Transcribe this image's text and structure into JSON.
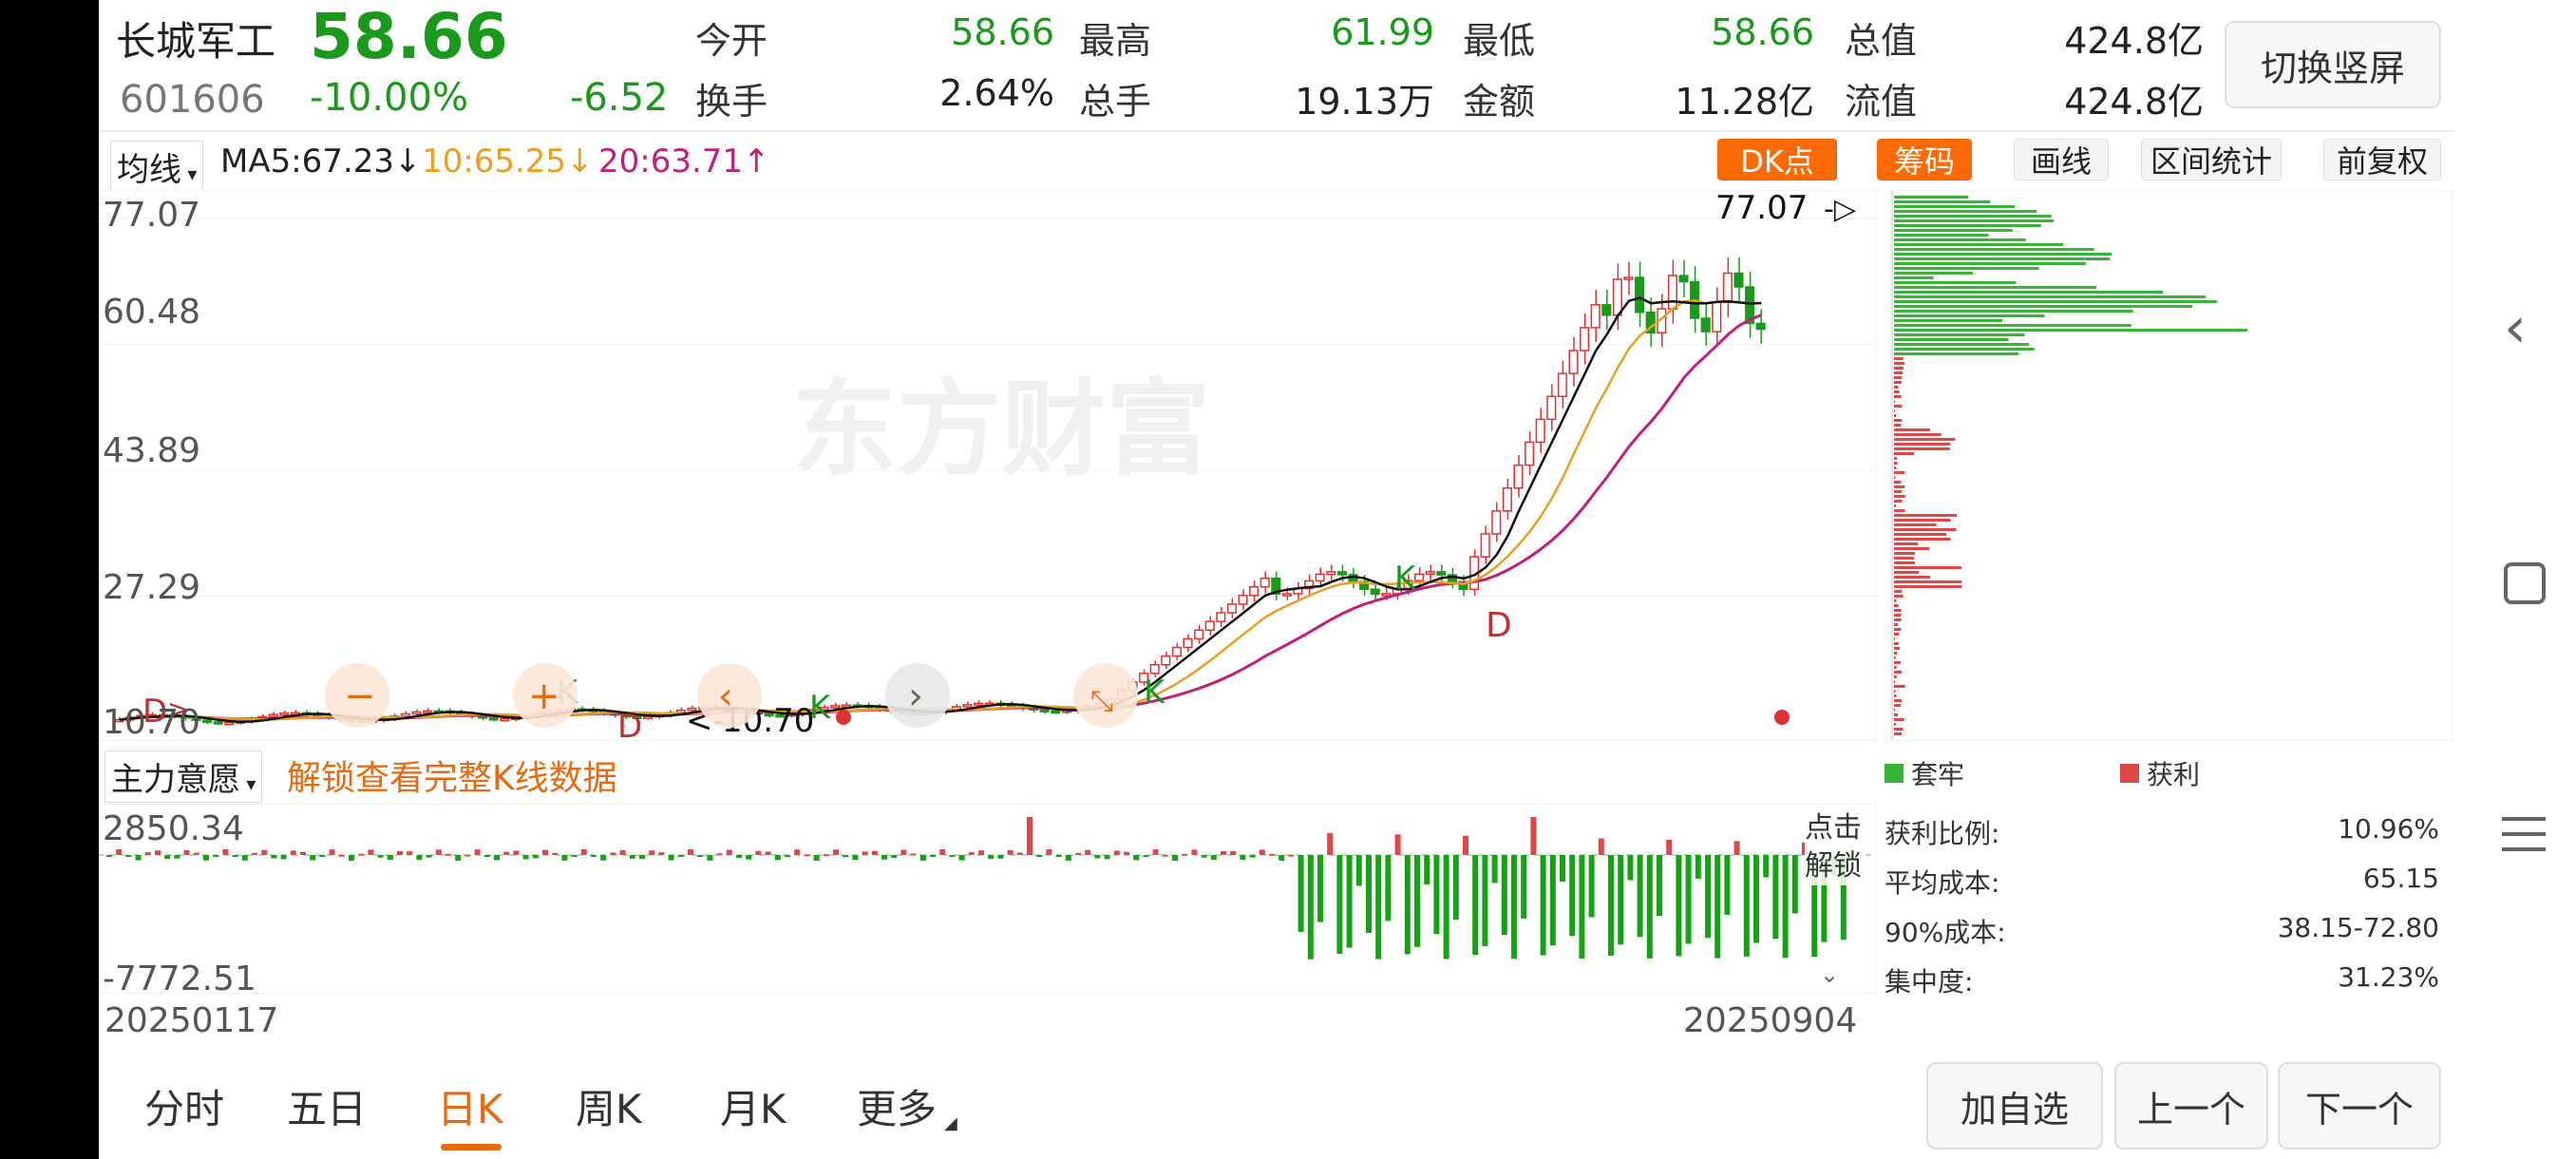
{
  "header": {
    "stock_name": "长城军工",
    "price": "58.66",
    "code": "601606",
    "change_pct": "-10.00%",
    "change_abs": "-6.52",
    "open_label": "今开",
    "open_value": "58.66",
    "high_label": "最高",
    "high_value": "61.99",
    "low_label": "最低",
    "low_value": "58.66",
    "mktcap_label": "总值",
    "mktcap_value": "424.8亿",
    "turnover_label": "换手",
    "turnover_value": "2.64%",
    "volume_label": "总手",
    "volume_value": "19.13万",
    "amount_label": "金额",
    "amount_value": "11.28亿",
    "float_label": "流值",
    "float_value": "424.8亿",
    "switch_button": "切换竖屏"
  },
  "toolbar": {
    "ma_select": "均线",
    "ma5": "MA5:67.23",
    "ma5_arrow": "↓",
    "ma10": "10:65.25",
    "ma10_arrow": "↓",
    "ma20": "20:63.71",
    "ma20_arrow": "↑",
    "dk_button": "DK点",
    "chips_button": "筹码",
    "draw_button": "画线",
    "range_button": "区间统计",
    "adjust_button": "前复权"
  },
  "chart": {
    "y_ticks": [
      "77.07",
      "60.48",
      "43.89",
      "27.29",
      "10.70"
    ],
    "max_marker": "77.07",
    "min_marker": "10.70",
    "watermark": "东方财富",
    "date_start": "20250117",
    "date_end": "20250904",
    "markers": [
      "D",
      "K",
      "D",
      "K",
      "K",
      "K",
      "D"
    ],
    "controls": [
      "−",
      "+",
      "‹",
      "›"
    ]
  },
  "indicator": {
    "select_label": "主力意愿",
    "unlock_text": "解锁查看完整K线数据",
    "top_value": "2850.34",
    "bottom_value": "-7772.51",
    "unlock_side": "点击解锁"
  },
  "chips_panel": {
    "legend_trapped": "套牢",
    "legend_profit": "获利",
    "stats": [
      {
        "label": "获利比例:",
        "value": "10.96%"
      },
      {
        "label": "平均成本:",
        "value": "65.15"
      },
      {
        "label": "90%成本:",
        "value": "38.15-72.80"
      },
      {
        "label": "集中度:",
        "value": "31.23%"
      }
    ]
  },
  "bottom_tabs": [
    "分时",
    "五日",
    "日K",
    "周K",
    "月K",
    "更多"
  ],
  "bottom_buttons": {
    "add": "加自选",
    "prev": "上一个",
    "next": "下一个"
  },
  "colors": {
    "up": "#e03030",
    "down": "#1a9a1a",
    "accent": "#ff6a00",
    "ma5": "#111111",
    "ma10": "#e8a020",
    "ma20": "#c0207a"
  }
}
